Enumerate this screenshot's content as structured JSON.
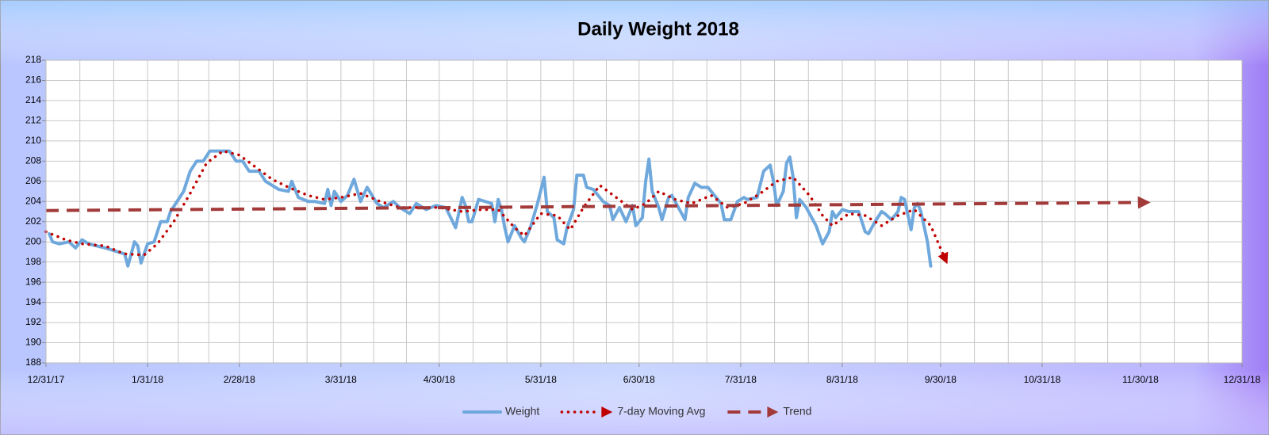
{
  "chart_data": {
    "type": "line",
    "title": "Daily Weight 2018",
    "xlim": [
      "2017-12-31",
      "2018-12-31"
    ],
    "xticks": [
      {
        "value": "2017-12-31",
        "label": "12/31/17"
      },
      {
        "value": "2018-01-31",
        "label": "1/31/18"
      },
      {
        "value": "2018-02-28",
        "label": "2/28/18"
      },
      {
        "value": "2018-03-31",
        "label": "3/31/18"
      },
      {
        "value": "2018-04-30",
        "label": "4/30/18"
      },
      {
        "value": "2018-05-31",
        "label": "5/31/18"
      },
      {
        "value": "2018-06-30",
        "label": "6/30/18"
      },
      {
        "value": "2018-07-31",
        "label": "7/31/18"
      },
      {
        "value": "2018-08-31",
        "label": "8/31/18"
      },
      {
        "value": "2018-09-30",
        "label": "9/30/18"
      },
      {
        "value": "2018-10-31",
        "label": "10/31/18"
      },
      {
        "value": "2018-11-30",
        "label": "11/30/18"
      },
      {
        "value": "2018-12-31",
        "label": "12/31/18"
      }
    ],
    "ylim": [
      188,
      218
    ],
    "yticks": [
      188,
      190,
      192,
      194,
      196,
      198,
      200,
      202,
      204,
      206,
      208,
      210,
      212,
      214,
      216,
      218
    ],
    "grid": true,
    "legend": "bottom",
    "series": [
      {
        "name": "Weight",
        "color": "#6fa8dc",
        "style": "solid",
        "end_arrow": false,
        "x": [
          "2018-01-01",
          "2018-01-02",
          "2018-01-04",
          "2018-01-07",
          "2018-01-09",
          "2018-01-11",
          "2018-01-13",
          "2018-01-18",
          "2018-01-24",
          "2018-01-25",
          "2018-01-27",
          "2018-01-28",
          "2018-01-29",
          "2018-01-31",
          "2018-02-02",
          "2018-02-04",
          "2018-02-06",
          "2018-02-07",
          "2018-02-09",
          "2018-02-11",
          "2018-02-13",
          "2018-02-15",
          "2018-02-17",
          "2018-02-19",
          "2018-02-22",
          "2018-02-25",
          "2018-02-27",
          "2018-03-01",
          "2018-03-03",
          "2018-03-06",
          "2018-03-08",
          "2018-03-12",
          "2018-03-15",
          "2018-03-16",
          "2018-03-18",
          "2018-03-21",
          "2018-03-23",
          "2018-03-26",
          "2018-03-27",
          "2018-03-28",
          "2018-03-29",
          "2018-03-31",
          "2018-04-02",
          "2018-04-04",
          "2018-04-06",
          "2018-04-08",
          "2018-04-11",
          "2018-04-13",
          "2018-04-16",
          "2018-04-18",
          "2018-04-21",
          "2018-04-23",
          "2018-04-26",
          "2018-04-29",
          "2018-05-02",
          "2018-05-05",
          "2018-05-07",
          "2018-05-08",
          "2018-05-09",
          "2018-05-10",
          "2018-05-12",
          "2018-05-14",
          "2018-05-16",
          "2018-05-17",
          "2018-05-18",
          "2018-05-19",
          "2018-05-20",
          "2018-05-21",
          "2018-05-23",
          "2018-05-25",
          "2018-05-26",
          "2018-05-28",
          "2018-05-30",
          "2018-06-01",
          "2018-06-02",
          "2018-06-04",
          "2018-06-05",
          "2018-06-07",
          "2018-06-08",
          "2018-06-10",
          "2018-06-11",
          "2018-06-13",
          "2018-06-14",
          "2018-06-16",
          "2018-06-19",
          "2018-06-21",
          "2018-06-22",
          "2018-06-24",
          "2018-06-26",
          "2018-06-28",
          "2018-06-29",
          "2018-07-01",
          "2018-07-02",
          "2018-07-03",
          "2018-07-04",
          "2018-07-06",
          "2018-07-07",
          "2018-07-09",
          "2018-07-10",
          "2018-07-12",
          "2018-07-14",
          "2018-07-15",
          "2018-07-17",
          "2018-07-19",
          "2018-07-21",
          "2018-07-23",
          "2018-07-25",
          "2018-07-26",
          "2018-07-28",
          "2018-07-30",
          "2018-08-01",
          "2018-08-02",
          "2018-08-05",
          "2018-08-07",
          "2018-08-09",
          "2018-08-10",
          "2018-08-11",
          "2018-08-13",
          "2018-08-14",
          "2018-08-15",
          "2018-08-16",
          "2018-08-17",
          "2018-08-18",
          "2018-08-20",
          "2018-08-22",
          "2018-08-23",
          "2018-08-25",
          "2018-08-27",
          "2018-08-28",
          "2018-08-29",
          "2018-08-31",
          "2018-09-02",
          "2018-09-05",
          "2018-09-07",
          "2018-09-08",
          "2018-09-10",
          "2018-09-12",
          "2018-09-13",
          "2018-09-15",
          "2018-09-17",
          "2018-09-18",
          "2018-09-19",
          "2018-09-21",
          "2018-09-22",
          "2018-09-23",
          "2018-09-24",
          "2018-09-26",
          "2018-09-27"
        ],
        "values": [
          200.8,
          200,
          199.8,
          200,
          199.4,
          200.2,
          199.8,
          199.4,
          198.8,
          197.6,
          200,
          199.6,
          197.9,
          199.8,
          200,
          202,
          202,
          203,
          204,
          205,
          207,
          208,
          208,
          209,
          209,
          209,
          208,
          208,
          207,
          207,
          206,
          205.2,
          205,
          206,
          204.4,
          204,
          204,
          203.8,
          205.2,
          203.6,
          205,
          204,
          204.6,
          206.2,
          204,
          205.4,
          203.8,
          203.4,
          204,
          203.4,
          202.8,
          203.8,
          203.2,
          203.6,
          203.4,
          201.4,
          204.4,
          203.6,
          202,
          202,
          204.2,
          204,
          203.8,
          202,
          204.2,
          203.2,
          201.4,
          200,
          201.6,
          200.4,
          200,
          201.6,
          203.8,
          206.4,
          203,
          202.4,
          200.2,
          199.8,
          201.4,
          203.2,
          206.6,
          206.6,
          205.4,
          205.2,
          204,
          203.6,
          202.2,
          203.4,
          202,
          203.6,
          201.6,
          202.4,
          206,
          208.2,
          205,
          203.4,
          202.2,
          204.4,
          204.6,
          203.4,
          202.2,
          204.4,
          205.8,
          205.4,
          205.4,
          204.6,
          203.8,
          202.2,
          202.2,
          204,
          204.4,
          204.2,
          204.4,
          207,
          207.6,
          206,
          203.6,
          205,
          207.8,
          208.4,
          206.4,
          202.4,
          204.2,
          203.4,
          202.2,
          201.6,
          199.8,
          201,
          203,
          202.4,
          203.2,
          203,
          203,
          201,
          200.8,
          202,
          203,
          202.8,
          202.2,
          203,
          204.4,
          204.2,
          201.2,
          203.4,
          203.8,
          203,
          200,
          197.6
        ]
      },
      {
        "name": "7-day Moving Avg",
        "color": "#c00000",
        "style": "dotted",
        "end_arrow": true,
        "x": [
          "2017-12-31",
          "2018-01-06",
          "2018-01-11",
          "2018-01-18",
          "2018-01-24",
          "2018-01-30",
          "2018-02-03",
          "2018-02-08",
          "2018-02-13",
          "2018-02-18",
          "2018-02-23",
          "2018-02-28",
          "2018-03-05",
          "2018-03-10",
          "2018-03-15",
          "2018-03-21",
          "2018-03-26",
          "2018-03-31",
          "2018-04-06",
          "2018-04-12",
          "2018-04-18",
          "2018-04-24",
          "2018-04-30",
          "2018-05-07",
          "2018-05-13",
          "2018-05-18",
          "2018-05-23",
          "2018-05-26",
          "2018-05-31",
          "2018-06-05",
          "2018-06-09",
          "2018-06-13",
          "2018-06-18",
          "2018-06-23",
          "2018-06-28",
          "2018-07-02",
          "2018-07-06",
          "2018-07-11",
          "2018-07-16",
          "2018-07-22",
          "2018-07-27",
          "2018-08-01",
          "2018-08-06",
          "2018-08-11",
          "2018-08-16",
          "2018-08-21",
          "2018-08-25",
          "2018-08-28",
          "2018-09-02",
          "2018-09-07",
          "2018-09-12",
          "2018-09-17",
          "2018-09-22",
          "2018-09-27",
          "2018-10-01"
        ],
        "values": [
          201,
          200.2,
          199.8,
          199.6,
          198.8,
          198.7,
          199.8,
          202,
          204.8,
          207.8,
          209,
          208.6,
          207.4,
          206.2,
          205.4,
          204.6,
          204.2,
          204.4,
          204.8,
          204,
          203.4,
          203.4,
          203.4,
          203,
          203.2,
          203.2,
          201.4,
          200.6,
          202.8,
          202.6,
          201.2,
          203.4,
          205.6,
          204.4,
          203.2,
          203.8,
          205,
          204.2,
          203.8,
          204.6,
          203.4,
          203.8,
          204.8,
          206,
          206.4,
          204.6,
          202.6,
          201.6,
          202.8,
          202.6,
          201.6,
          202.6,
          203.2,
          201.6,
          198.6
        ]
      },
      {
        "name": "Trend",
        "color": "#a33a3a",
        "style": "dashed",
        "end_arrow": true,
        "x": [
          "2017-12-31",
          "2018-11-30"
        ],
        "values": [
          203.1,
          203.9
        ]
      }
    ]
  }
}
